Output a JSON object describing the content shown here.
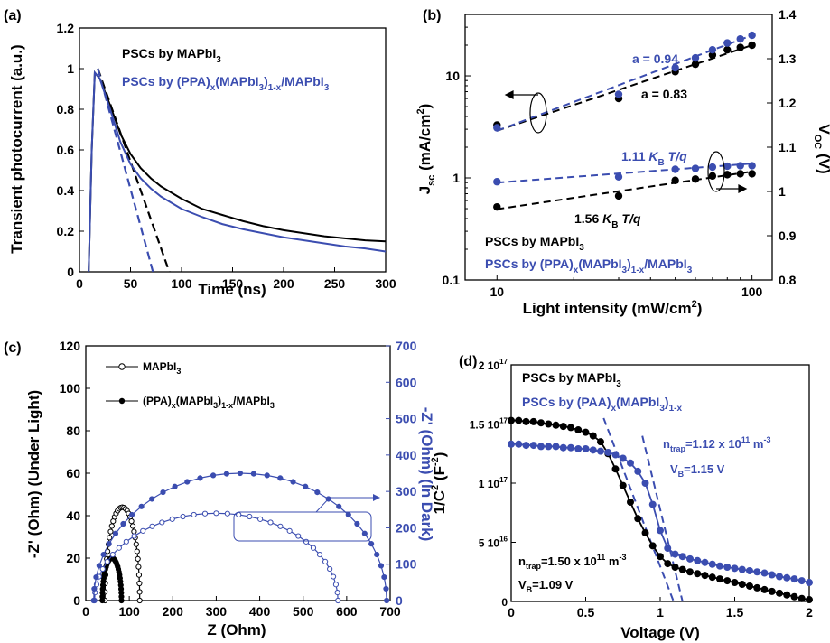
{
  "colors": {
    "black": "#000000",
    "blue": "#3b4db0"
  },
  "chart_data": [
    {
      "panel": "(a)",
      "type": "line",
      "xlabel": "Time (ns)",
      "ylabel": "Transient photocurrent (a.u.)",
      "xlim": [
        0,
        300
      ],
      "ylim": [
        0,
        1.2
      ],
      "xticks": [
        0,
        50,
        100,
        150,
        200,
        250,
        300
      ],
      "yticks": [
        0,
        0.2,
        0.4,
        0.6,
        0.8,
        1,
        1.2
      ],
      "ytick_labels": [
        "0",
        "0.2",
        "0.4",
        "0.6",
        "0.8",
        "1",
        "1.2"
      ],
      "legend": [
        {
          "label": "PSCs by MAPbI",
          "sub": "3",
          "color": "#000000"
        },
        {
          "label": "PSCs by (PPA)",
          "sub": "x",
          "mid": "(MAPbI",
          "sub2": "3",
          "mid2": ")",
          "sub3": "1-x",
          "tail": "/MAPbI",
          "sub4": "3",
          "color": "#3b4db0"
        }
      ],
      "series": [
        {
          "name": "PSCs by MAPbI3",
          "color": "#000000",
          "x": [
            9,
            12,
            15,
            20,
            30,
            40,
            50,
            60,
            70,
            80,
            90,
            100,
            120,
            140,
            160,
            180,
            200,
            220,
            240,
            260,
            280,
            300
          ],
          "y": [
            0,
            0.6,
            0.98,
            0.95,
            0.82,
            0.68,
            0.58,
            0.51,
            0.46,
            0.42,
            0.39,
            0.36,
            0.31,
            0.28,
            0.25,
            0.225,
            0.205,
            0.19,
            0.175,
            0.165,
            0.155,
            0.15
          ]
        },
        {
          "name": "PSCs by (PPA)x(MAPbI3)1-x/MAPbI3",
          "color": "#3b4db0",
          "x": [
            9,
            12,
            15,
            20,
            30,
            40,
            50,
            60,
            70,
            80,
            90,
            100,
            120,
            140,
            160,
            180,
            200,
            220,
            240,
            260,
            280,
            300
          ],
          "y": [
            0,
            0.6,
            0.98,
            0.95,
            0.8,
            0.64,
            0.53,
            0.46,
            0.41,
            0.37,
            0.34,
            0.31,
            0.27,
            0.235,
            0.21,
            0.19,
            0.17,
            0.155,
            0.14,
            0.125,
            0.115,
            0.1
          ]
        }
      ],
      "fit_lines": [
        {
          "color": "#000000",
          "x": [
            18,
            88
          ],
          "y": [
            1.0,
            0.0
          ]
        },
        {
          "color": "#3b4db0",
          "x": [
            18,
            72
          ],
          "y": [
            1.0,
            0.0
          ]
        }
      ]
    },
    {
      "panel": "(b)",
      "type": "scatter",
      "xlabel": "Light intensity (mW/cm",
      "xlabel_sup": "2",
      "xlabel_end": ")",
      "ylabel_left": "J",
      "ylabel_left_sub": "sc",
      "ylabel_left_rest": " (mA/cm",
      "ylabel_left_sup": "2",
      "ylabel_left_end": ")",
      "ylabel_right": "V",
      "ylabel_right_sub": "OC",
      "ylabel_right_end": " (V)",
      "x_scale": "log",
      "y_left_scale": "log",
      "xlim": [
        7.5,
        120
      ],
      "ylim_left": [
        0.1,
        40
      ],
      "ylim_right": [
        0.8,
        1.4
      ],
      "xtick_labels": [
        {
          "v": 10,
          "t": "10"
        },
        {
          "v": 100,
          "t": "100"
        }
      ],
      "ytick_left": [
        {
          "v": 0.1,
          "t": "0.1"
        },
        {
          "v": 1,
          "t": "1"
        },
        {
          "v": 10,
          "t": "10"
        }
      ],
      "ytick_right": [
        0.8,
        0.9,
        1,
        1.1,
        1.2,
        1.3,
        1.4
      ],
      "ytick_right_labels": [
        "0.8",
        "0.9",
        "1",
        "1.1",
        "1.2",
        "1.3",
        "1.4"
      ],
      "annotations": {
        "blue_slope": "a = 0.94",
        "black_slope": "a = 0.83",
        "blue_voc_prefix": "1.11 ",
        "blue_voc_k": "K",
        "blue_voc_b": "B",
        "blue_voc_tq": " T/q",
        "black_voc_prefix": "1.56 ",
        "black_voc_k": "K",
        "black_voc_b": "B",
        "black_voc_tq": " T/q"
      },
      "legend": [
        {
          "label": "PSCs by MAPbI",
          "sub": "3",
          "color": "#000000"
        },
        {
          "label": "PSCs by (PPA)",
          "sub": "x",
          "mid": "(MAPbI",
          "sub2": "3",
          "mid2": ")",
          "sub3": "1-x",
          "tail": "/MAPbI",
          "sub4": "3",
          "color": "#3b4db0"
        }
      ],
      "series": [
        {
          "name": "Jsc MAPbI3",
          "axis": "left",
          "color": "#000000",
          "x": [
            10,
            30,
            50,
            60,
            70,
            80,
            90,
            100
          ],
          "y": [
            3.3,
            6.0,
            11,
            13,
            16,
            18,
            19,
            20
          ]
        },
        {
          "name": "Jsc PPA",
          "axis": "left",
          "color": "#3b4db0",
          "x": [
            10,
            30,
            50,
            60,
            70,
            80,
            90,
            100
          ],
          "y": [
            3.1,
            6.6,
            12,
            15,
            18,
            21,
            23,
            25
          ]
        },
        {
          "name": "Voc MAPbI3",
          "axis": "right",
          "color": "#000000",
          "x": [
            10,
            30,
            50,
            60,
            70,
            80,
            90,
            100
          ],
          "y": [
            0.965,
            0.99,
            1.025,
            1.028,
            1.035,
            1.038,
            1.04,
            1.04
          ]
        },
        {
          "name": "Voc PPA",
          "axis": "right",
          "color": "#3b4db0",
          "x": [
            10,
            30,
            50,
            60,
            70,
            80,
            90,
            100
          ],
          "y": [
            1.022,
            1.033,
            1.05,
            1.052,
            1.055,
            1.057,
            1.058,
            1.058
          ]
        }
      ],
      "fit_lines": [
        {
          "axis": "left",
          "color": "#000000",
          "x": [
            10,
            100
          ],
          "y": [
            2.9,
            20
          ]
        },
        {
          "axis": "left",
          "color": "#3b4db0",
          "x": [
            10,
            100
          ],
          "y": [
            2.9,
            25
          ]
        },
        {
          "axis": "right",
          "color": "#000000",
          "x": [
            10,
            100
          ],
          "y": [
            0.96,
            1.045
          ]
        },
        {
          "axis": "right",
          "color": "#3b4db0",
          "x": [
            10,
            100
          ],
          "y": [
            1.02,
            1.063
          ]
        }
      ]
    },
    {
      "panel": "(c)",
      "type": "scatter",
      "xlabel": "Z (Ohm)",
      "ylabel_left": "-Z' (Ohm) (Under Light)",
      "ylabel_right": "-Z' (Ohm) (In Dark)",
      "xlim": [
        0,
        700
      ],
      "ylim_left": [
        0,
        120
      ],
      "ylim_right": [
        0,
        700
      ],
      "xticks": [
        0,
        100,
        200,
        300,
        400,
        500,
        600,
        700
      ],
      "yticks_left": [
        0,
        20,
        40,
        60,
        80,
        100,
        120
      ],
      "yticks_right": [
        0,
        100,
        200,
        300,
        400,
        500,
        600,
        700
      ],
      "legend": [
        {
          "label": "MAPbI",
          "sub": "3",
          "marker": "open",
          "color": "#000000"
        },
        {
          "label": "(PPA)",
          "sub": "x",
          "mid": "(MAPbI",
          "sub2": "3",
          "mid2": ")",
          "sub3": "1-x",
          "tail": "/MAPbI",
          "sub4": "3",
          "marker": "filled",
          "color": "#000000"
        }
      ],
      "series": [
        {
          "name": "MAPbI3 light",
          "axis": "left",
          "color": "#000000",
          "marker": "open",
          "cx": 84,
          "r": 40,
          "ry": 44
        },
        {
          "name": "PPA light",
          "axis": "left",
          "color": "#000000",
          "marker": "filled",
          "cx": 60,
          "r": 22,
          "ry": 20
        },
        {
          "name": "MAPbI3 dark",
          "axis": "right",
          "color": "#3b4db0",
          "marker": "open",
          "cx": 300,
          "r": 280,
          "ry": 240
        },
        {
          "name": "PPA dark",
          "axis": "right",
          "color": "#3b4db0",
          "marker": "filled",
          "cx": 355,
          "r": 337,
          "ry": 350
        }
      ]
    },
    {
      "panel": "(d)",
      "type": "line",
      "xlabel": "Voltage (V)",
      "ylabel": "1/C",
      "ylabel_sup": "2",
      "ylabel_rest": " (F",
      "ylabel_sup2": "-2",
      "ylabel_end": ")",
      "xlim": [
        0,
        2
      ],
      "ylim": [
        0,
        2e+17
      ],
      "xticks": [
        0,
        0.5,
        1,
        1.5,
        2
      ],
      "xtick_labels": [
        "0",
        "0.5",
        "1",
        "1.5",
        "2"
      ],
      "yticks": [
        0,
        5e+16,
        1e+17,
        1.5e+17,
        2e+17
      ],
      "ytick_labels": [
        {
          "base": "0",
          "exp": ""
        },
        {
          "base": "5 10",
          "exp": "16"
        },
        {
          "base": "1 10",
          "exp": "17"
        },
        {
          "base": "1.5 10",
          "exp": "17"
        },
        {
          "base": "2 10",
          "exp": "17"
        }
      ],
      "legend": [
        {
          "label": "PSCs by MAPbI",
          "sub": "3",
          "color": "#000000"
        },
        {
          "label": "PSCs by (PAA)",
          "sub": "x",
          "mid": "(MAPbI",
          "sub2": "3",
          "mid2": ")",
          "sub3": "1-x",
          "tail": "",
          "sub4": "",
          "color": "#3b4db0"
        }
      ],
      "annotations": {
        "blue_ntrap": "n",
        "blue_ntrap_sub": "trap",
        "blue_ntrap_val": "=1.12 x 10",
        "blue_ntrap_exp": "11",
        "blue_ntrap_unit": " m",
        "blue_ntrap_unit_exp": "-3",
        "blue_vb": "V",
        "blue_vb_sub": "B",
        "blue_vb_val": "=1.15 V",
        "black_ntrap": "n",
        "black_ntrap_sub": "trap",
        "black_ntrap_val": "=1.50 x 10",
        "black_ntrap_exp": "11",
        "black_ntrap_unit": " m",
        "black_ntrap_unit_exp": "-3",
        "black_vb": "V",
        "black_vb_sub": "B",
        "black_vb_val": "=1.09 V"
      },
      "series": [
        {
          "name": "PSCs by MAPbI3",
          "color": "#000000",
          "x": [
            0,
            0.05,
            0.1,
            0.15,
            0.2,
            0.25,
            0.3,
            0.35,
            0.4,
            0.45,
            0.5,
            0.55,
            0.6,
            0.65,
            0.7,
            0.75,
            0.8,
            0.85,
            0.9,
            0.95,
            1.0,
            1.05,
            1.1,
            1.15,
            1.2,
            1.25,
            1.3,
            1.35,
            1.4,
            1.45,
            1.5,
            1.55,
            1.6,
            1.65,
            1.7,
            1.75,
            1.8,
            1.85,
            1.9,
            1.95,
            2.0
          ],
          "y": [
            1.53e+17,
            1.53e+17,
            1.52e+17,
            1.52e+17,
            1.51e+17,
            1.5e+17,
            1.49e+17,
            1.48e+17,
            1.47e+17,
            1.45e+17,
            1.43e+17,
            1.4e+17,
            1.35e+17,
            1.25e+17,
            1.12e+17,
            9.8e+16,
            8.4e+16,
            7e+16,
            5.8e+16,
            4.7e+16,
            3.8e+16,
            3.2e+16,
            2.9e+16,
            2.7e+16,
            2.5e+16,
            2.35e+16,
            2.2e+16,
            2.05e+16,
            1.9e+16,
            1.75e+16,
            1.6e+16,
            1.45e+16,
            1.3e+16,
            1.15e+16,
            1e+16,
            8500000000000000.0,
            7000000000000000.0,
            5500000000000000.0,
            4000000000000000.0,
            2500000000000000.0,
            1500000000000000.0
          ]
        },
        {
          "name": "PSCs by (PAA)x(MAPbI3)1-x",
          "color": "#3b4db0",
          "x": [
            0,
            0.05,
            0.1,
            0.15,
            0.2,
            0.25,
            0.3,
            0.35,
            0.4,
            0.45,
            0.5,
            0.55,
            0.6,
            0.65,
            0.7,
            0.75,
            0.8,
            0.85,
            0.9,
            0.95,
            1.0,
            1.05,
            1.1,
            1.15,
            1.2,
            1.25,
            1.3,
            1.35,
            1.4,
            1.45,
            1.5,
            1.55,
            1.6,
            1.65,
            1.7,
            1.75,
            1.8,
            1.85,
            1.9,
            1.95,
            2.0
          ],
          "y": [
            1.33e+17,
            1.33e+17,
            1.32e+17,
            1.32e+17,
            1.31e+17,
            1.31e+17,
            1.31e+17,
            1.3e+17,
            1.3e+17,
            1.29e+17,
            1.29e+17,
            1.28e+17,
            1.27e+17,
            1.26e+17,
            1.24e+17,
            1.21e+17,
            1.17e+17,
            1.1e+17,
            1e+17,
            8.2e+16,
            6e+16,
            4.5e+16,
            4e+16,
            3.8e+16,
            3.6e+16,
            3.45e+16,
            3.3e+16,
            3.15e+16,
            3e+16,
            2.9e+16,
            2.8e+16,
            2.7e+16,
            2.6e+16,
            2.5e+16,
            2.4e+16,
            2.25e+16,
            2.1e+16,
            2e+16,
            1.9e+16,
            1.75e+16,
            1.6e+16
          ]
        }
      ],
      "fit_lines": [
        {
          "color": "#3b4db0",
          "x": [
            0.88,
            1.15
          ],
          "y": [
            1.4e+17,
            0.0
          ]
        },
        {
          "color": "#3b4db0",
          "x": [
            0.62,
            1.09
          ],
          "y": [
            1.55e+17,
            0.0
          ]
        }
      ]
    }
  ]
}
